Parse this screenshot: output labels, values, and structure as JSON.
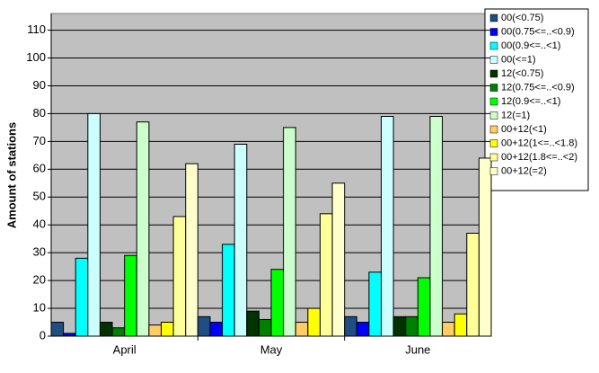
{
  "chart_data": {
    "type": "bar",
    "y_label": "Amount of stations",
    "categories": [
      "April",
      "May",
      "June"
    ],
    "series": [
      {
        "name": "00(<0.75)",
        "color": "#1f4e82",
        "values": [
          5,
          7,
          7
        ]
      },
      {
        "name": "00(0.75<=..<0.9)",
        "color": "#0000ff",
        "values": [
          1,
          5,
          5
        ]
      },
      {
        "name": "00(0.9<=..<1)",
        "color": "#00ffff",
        "values": [
          28,
          33,
          23
        ]
      },
      {
        "name": "00(<=1)",
        "color": "#ccffff",
        "values": [
          80,
          69,
          79
        ]
      },
      {
        "name": "12(<0.75)",
        "color": "#003300",
        "values": [
          5,
          9,
          7
        ]
      },
      {
        "name": "12(0.75<=..<0.9)",
        "color": "#008000",
        "values": [
          3,
          6,
          7
        ]
      },
      {
        "name": "12(0.9<=..<1)",
        "color": "#00ff00",
        "values": [
          29,
          24,
          21
        ]
      },
      {
        "name": "12(=1)",
        "color": "#ccffcc",
        "values": [
          77,
          75,
          79
        ]
      },
      {
        "name": "00+12(<1)",
        "color": "#ffcc66",
        "values": [
          4,
          5,
          5
        ]
      },
      {
        "name": "00+12(1<=..<1.8)",
        "color": "#ffff00",
        "values": [
          5,
          10,
          8
        ]
      },
      {
        "name": "00+12(1.8<=..<2)",
        "color": "#ffff99",
        "values": [
          43,
          44,
          37
        ]
      },
      {
        "name": "00+12(=2)",
        "color": "#ffffcc",
        "values": [
          62,
          55,
          64
        ]
      }
    ],
    "ylim": [
      0,
      116
    ],
    "yticks": [
      0,
      10,
      20,
      30,
      40,
      50,
      60,
      70,
      80,
      90,
      100,
      110
    ],
    "grid": true,
    "legend": "right"
  }
}
